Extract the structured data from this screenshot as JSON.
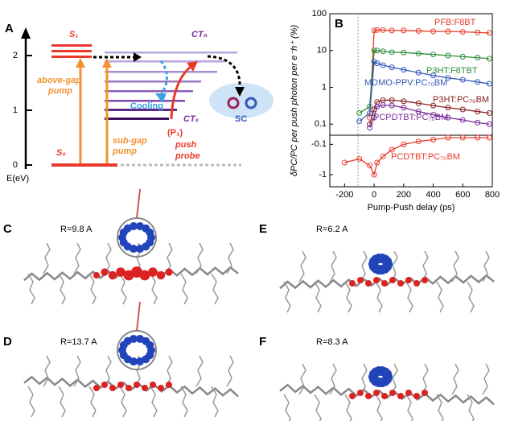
{
  "diagram": {
    "panel_label": "A",
    "s1": "S₁",
    "ctn": "CTₙ",
    "above_gap": [
      "above-gap",
      "pump"
    ],
    "sub_gap": [
      "sub-gap",
      "pump"
    ],
    "cooling": "Cooling",
    "ct0": "CT₀",
    "push": [
      "(P₁)",
      "push",
      "probe"
    ],
    "sc": "SC",
    "s0": "S₀",
    "energy_axis": {
      "label": "E(eV)",
      "ticks": [
        0,
        1,
        2
      ]
    }
  },
  "chart_data": {
    "type": "scatter",
    "panel_label": "B",
    "xlabel": "Pump-Push delay (ps)",
    "ylabel": "δPC/PC per push photon per e⁻h⁺ (%)",
    "xlim": [
      -300,
      800
    ],
    "xticks": [
      -200,
      0,
      200,
      400,
      600,
      800
    ],
    "ylim": [
      0.05,
      100
    ],
    "yticks": [
      0.1,
      1,
      10,
      100
    ],
    "log_y": true,
    "y2lim": [
      -0.05,
      -2.5
    ],
    "y2ticks": [
      -0.1,
      -1
    ],
    "log_y2": true,
    "x": [
      -200,
      -100,
      -30,
      0,
      20,
      60,
      120,
      200,
      300,
      400,
      500,
      600,
      700,
      780
    ],
    "series": [
      {
        "name": "PFB:F8BT",
        "color": "#e8392b",
        "values": [
          null,
          null,
          0.15,
          35,
          36,
          36,
          35,
          35,
          34,
          33,
          33,
          32,
          31,
          30
        ]
      },
      {
        "name": "P3HT:F8TBT",
        "color": "#2e8b3a",
        "values": [
          null,
          0.2,
          0.3,
          10,
          10,
          9.5,
          9,
          8.8,
          8.3,
          7.8,
          7.3,
          6.8,
          6.4,
          6
        ]
      },
      {
        "name": "MDMO-PPV:PC₇₀BM",
        "color": "#3559b8",
        "values": [
          null,
          0.12,
          0.2,
          5,
          4.5,
          4,
          3.5,
          3,
          2.5,
          2.1,
          1.8,
          1.6,
          1.4,
          1.25
        ]
      },
      {
        "name": "P3HT:PC₇₀BM",
        "color": "#8b2020",
        "values": [
          null,
          null,
          0.1,
          0.25,
          0.4,
          0.45,
          0.45,
          0.42,
          0.37,
          0.32,
          0.28,
          0.25,
          0.22,
          0.2
        ]
      },
      {
        "name": "PCPDTBT:PC₇₀BM",
        "color": "#7b2d9b",
        "values": [
          null,
          null,
          0.08,
          0.15,
          0.3,
          0.33,
          0.32,
          0.28,
          0.22,
          0.18,
          0.15,
          0.13,
          0.11,
          0.1
        ]
      },
      {
        "name": "PCDTBT:PC₇₀BM",
        "color": "#e8392b",
        "axis": "y2",
        "values": [
          -0.4,
          -0.3,
          -0.5,
          -1,
          -0.4,
          -0.25,
          -0.15,
          -0.1,
          -0.08,
          -0.07,
          -0.06,
          -0.06,
          -0.06,
          -0.06
        ]
      }
    ]
  },
  "structures": [
    {
      "panel_label": "C",
      "label": "R=9.8 A"
    },
    {
      "panel_label": "D",
      "label": "R=13.7 A"
    },
    {
      "panel_label": "E",
      "label": "R=6.2 A"
    },
    {
      "panel_label": "F",
      "label": "R=8.3 A"
    }
  ]
}
